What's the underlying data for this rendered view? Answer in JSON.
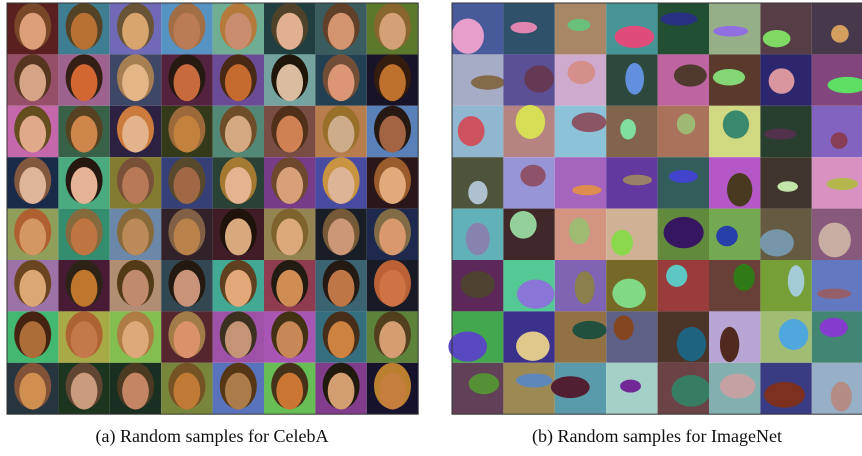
{
  "panels": [
    {
      "caption": "(a) Random samples for CelebA"
    },
    {
      "caption": "(b) Random samples for ImageNet"
    }
  ]
}
